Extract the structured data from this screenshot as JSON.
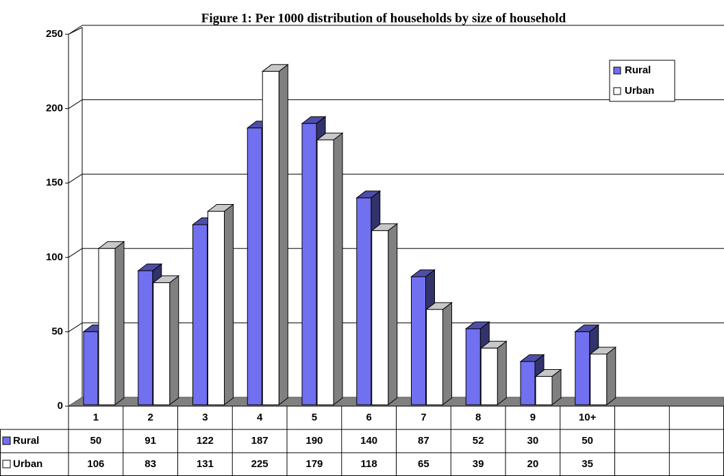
{
  "chart_data": {
    "type": "bar3d",
    "title": "Figure 1: Per 1000 distribution of households by size of household",
    "categories": [
      "1",
      "2",
      "3",
      "4",
      "5",
      "6",
      "7",
      "8",
      "9",
      "10+",
      null,
      null
    ],
    "series": [
      {
        "name": "Rural",
        "color": "#7070f0",
        "values": [
          50,
          91,
          122,
          187,
          190,
          140,
          87,
          52,
          30,
          50,
          null,
          null
        ]
      },
      {
        "name": "Urban",
        "color": "#ffffff",
        "values": [
          106,
          83,
          131,
          225,
          179,
          118,
          65,
          39,
          20,
          35,
          null,
          null
        ]
      }
    ],
    "ylim": [
      0,
      250
    ],
    "yticks": [
      0,
      50,
      100,
      150,
      200,
      250
    ],
    "grid": true,
    "legend": "upper right",
    "data_table": true
  }
}
